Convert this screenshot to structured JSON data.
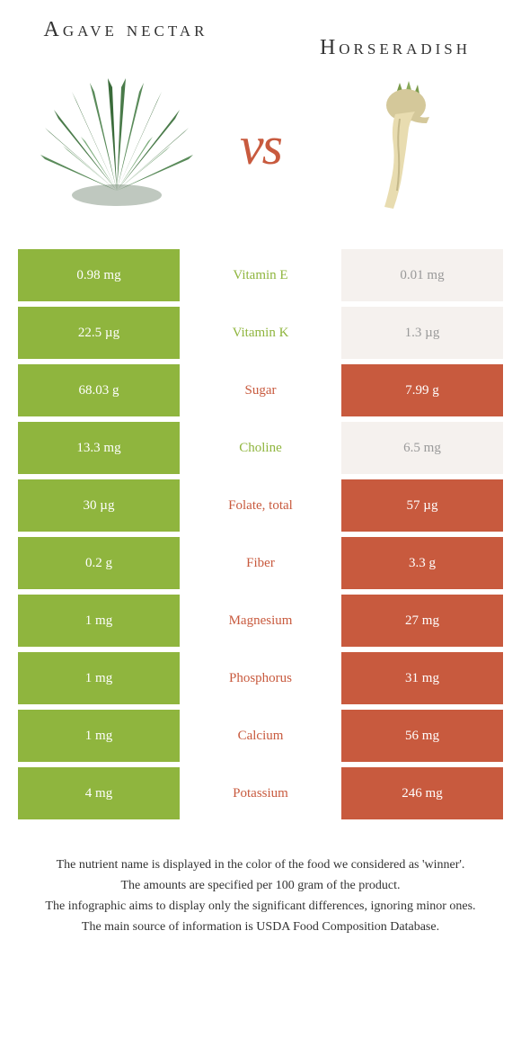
{
  "colors": {
    "left_food": "#8fb53e",
    "right_food": "#c85a3e",
    "row_bg_neutral": "#f5f1ee",
    "text_dark": "#333333"
  },
  "header": {
    "left_title": "Agave nectar",
    "right_title": "Horseradish",
    "vs": "vs"
  },
  "rows": [
    {
      "nutrient": "Vitamin E",
      "left": "0.98 mg",
      "right": "0.01 mg",
      "winner": "left"
    },
    {
      "nutrient": "Vitamin K",
      "left": "22.5 µg",
      "right": "1.3 µg",
      "winner": "left"
    },
    {
      "nutrient": "Sugar",
      "left": "68.03 g",
      "right": "7.99 g",
      "winner": "right"
    },
    {
      "nutrient": "Choline",
      "left": "13.3 mg",
      "right": "6.5 mg",
      "winner": "left"
    },
    {
      "nutrient": "Folate, total",
      "left": "30 µg",
      "right": "57 µg",
      "winner": "right"
    },
    {
      "nutrient": "Fiber",
      "left": "0.2 g",
      "right": "3.3 g",
      "winner": "right"
    },
    {
      "nutrient": "Magnesium",
      "left": "1 mg",
      "right": "27 mg",
      "winner": "right"
    },
    {
      "nutrient": "Phosphorus",
      "left": "1 mg",
      "right": "31 mg",
      "winner": "right"
    },
    {
      "nutrient": "Calcium",
      "left": "1 mg",
      "right": "56 mg",
      "winner": "right"
    },
    {
      "nutrient": "Potassium",
      "left": "4 mg",
      "right": "246 mg",
      "winner": "right"
    }
  ],
  "footer": {
    "line1": "The nutrient name is displayed in the color of the food we considered as 'winner'.",
    "line2": "The amounts are specified per 100 gram of the product.",
    "line3": "The infographic aims to display only the significant differences, ignoring minor ones.",
    "line4": "The main source of information is USDA Food Composition Database."
  }
}
